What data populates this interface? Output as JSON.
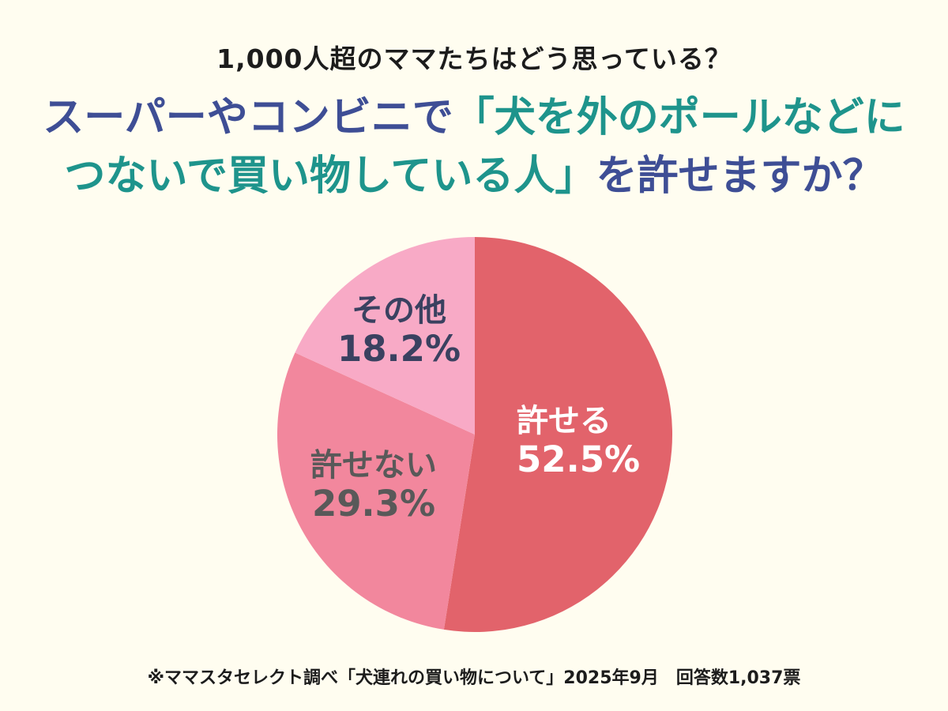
{
  "page": {
    "background": "#FFFDF0"
  },
  "header": {
    "kicker": "1,000人超のママたちはどう思っている？"
  },
  "title": {
    "colors": {
      "blue": "#3E4E95",
      "teal": "#1E948C"
    },
    "lines": [
      [
        {
          "text": "スーパーやコンビニで",
          "color": "blue"
        },
        {
          "text": "「犬を外のポールなどに",
          "color": "teal"
        }
      ],
      [
        {
          "text": "つないで買い物している人」",
          "color": "teal"
        },
        {
          "text": "を許せますか？",
          "color": "blue"
        }
      ]
    ]
  },
  "chart_data": {
    "type": "pie",
    "title": "スーパーやコンビニで「犬を外のポールなどにつないで買い物している人」を許せますか？",
    "unit": "%",
    "start_angle_deg": 0,
    "direction": "clockwise",
    "slices": [
      {
        "name": "許せる",
        "value": 52.5,
        "color": "#E2636B",
        "label_color": "#FFFFFF"
      },
      {
        "name": "許せない",
        "value": 29.3,
        "color": "#F2879D",
        "label_color": "#595959"
      },
      {
        "name": "その他",
        "value": 18.2,
        "color": "#F8AAC6",
        "label_color": "#3A4160"
      }
    ]
  },
  "footer": {
    "note": "※ママスタセレクト調べ「犬連れの買い物について」2025年9月　回答数1,037票"
  }
}
